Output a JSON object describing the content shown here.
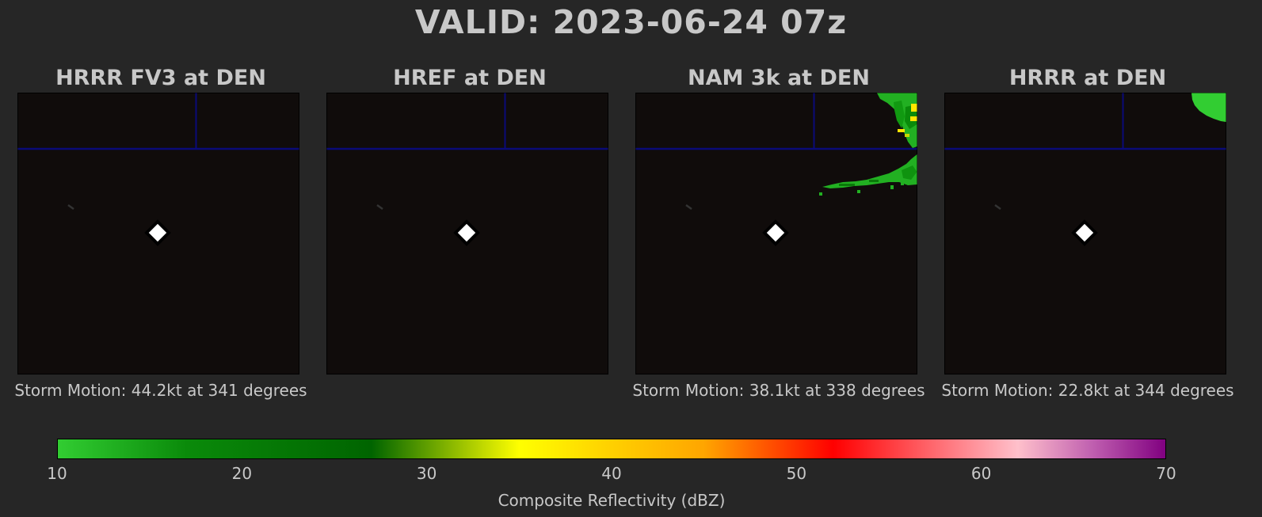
{
  "title": "VALID: 2023-06-24 07z",
  "chart_data": {
    "type": "heatmap",
    "panels": [
      {
        "title": "HRRR FV3 at DEN",
        "storm_motion": "Storm Motion: 44.2kt at 341 degrees",
        "echo": "none"
      },
      {
        "title": "HREF at DEN",
        "storm_motion": "",
        "echo": "none"
      },
      {
        "title": "NAM 3k at DEN",
        "storm_motion": "Storm Motion: 38.1kt at 338 degrees",
        "echo": "northeast-band"
      },
      {
        "title": "HRRR at DEN",
        "storm_motion": "Storm Motion: 22.8kt at 344 degrees",
        "echo": "northeast-corner"
      }
    ],
    "station_marker": "diamond",
    "colorbar": {
      "label": "Composite Reflectivity (dBZ)",
      "min": 10,
      "max": 70,
      "ticks": [
        10,
        20,
        30,
        40,
        50,
        60,
        70
      ],
      "stops": [
        {
          "value": 10,
          "color": "#32cd32"
        },
        {
          "value": 17,
          "color": "#0a8a0a"
        },
        {
          "value": 27,
          "color": "#006400"
        },
        {
          "value": 35,
          "color": "#ffff00"
        },
        {
          "value": 40,
          "color": "#ffd000"
        },
        {
          "value": 45,
          "color": "#ffa500"
        },
        {
          "value": 52,
          "color": "#ff0000"
        },
        {
          "value": 62,
          "color": "#ffc0cb"
        },
        {
          "value": 66,
          "color": "#c060b0"
        },
        {
          "value": 70,
          "color": "#800080"
        }
      ]
    }
  },
  "colors": {
    "background": "#262626",
    "plot_background": "#100c0b",
    "boundary_line": "#0a0a78",
    "text": "#c8c8c8"
  }
}
